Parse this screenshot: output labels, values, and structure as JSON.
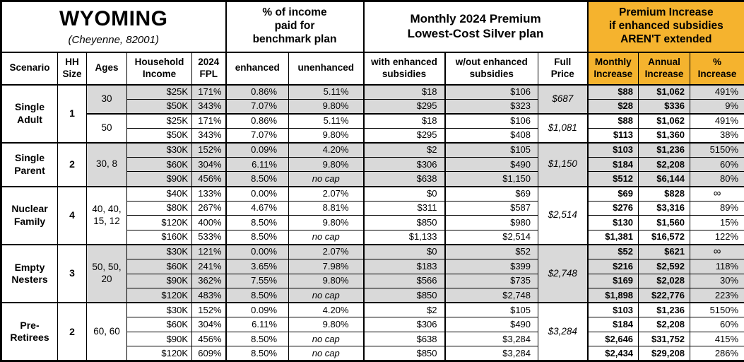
{
  "title": {
    "state": "WYOMING",
    "location": "(Cheyenne, 82001)"
  },
  "colors": {
    "accent_orange": "#F5B32E",
    "row_shade_gray": "#D9D9D9",
    "border_black": "#000000"
  },
  "header": {
    "groups": {
      "income_pct": "% of income\npaid for\nbenchmark plan",
      "premium": "Monthly 2024 Premium\nLowest-Cost Silver plan",
      "increase": "Premium Increase\nif enhanced subsidies\nAREN'T extended"
    },
    "cols": {
      "scenario": "Scenario",
      "hh": "HH\nSize",
      "ages": "Ages",
      "income": "Household\nIncome",
      "fpl": "2024\nFPL",
      "enh": "enhanced",
      "unenh": "unenhanced",
      "with_sub": "with enhanced\nsubsidies",
      "wout_sub": "w/out enhanced\nsubsidies",
      "full": "Full\nPrice",
      "mon": "Monthly\nIncrease",
      "ann": "Annual\nIncrease",
      "pct": "%\nIncrease"
    }
  },
  "groups": [
    {
      "scenario": "Single Adult",
      "hh": "1",
      "blocks": [
        {
          "ages": "30",
          "shaded": true,
          "full": "$687",
          "rows": [
            {
              "income": "$25K",
              "fpl": "171%",
              "enh": "0.86%",
              "unenh": "5.11%",
              "with_sub": "$18",
              "wout_sub": "$106",
              "mon": "$88",
              "ann": "$1,062",
              "pct": "491%"
            },
            {
              "income": "$50K",
              "fpl": "343%",
              "enh": "7.07%",
              "unenh": "9.80%",
              "with_sub": "$295",
              "wout_sub": "$323",
              "mon": "$28",
              "ann": "$336",
              "pct": "9%"
            }
          ]
        },
        {
          "ages": "50",
          "shaded": false,
          "full": "$1,081",
          "rows": [
            {
              "income": "$25K",
              "fpl": "171%",
              "enh": "0.86%",
              "unenh": "5.11%",
              "with_sub": "$18",
              "wout_sub": "$106",
              "mon": "$88",
              "ann": "$1,062",
              "pct": "491%"
            },
            {
              "income": "$50K",
              "fpl": "343%",
              "enh": "7.07%",
              "unenh": "9.80%",
              "with_sub": "$295",
              "wout_sub": "$408",
              "mon": "$113",
              "ann": "$1,360",
              "pct": "38%"
            }
          ]
        }
      ]
    },
    {
      "scenario": "Single Parent",
      "hh": "2",
      "blocks": [
        {
          "ages": "30, 8",
          "shaded": true,
          "full": "$1,150",
          "rows": [
            {
              "income": "$30K",
              "fpl": "152%",
              "enh": "0.09%",
              "unenh": "4.20%",
              "with_sub": "$2",
              "wout_sub": "$105",
              "mon": "$103",
              "ann": "$1,236",
              "pct": "5150%"
            },
            {
              "income": "$60K",
              "fpl": "304%",
              "enh": "6.11%",
              "unenh": "9.80%",
              "with_sub": "$306",
              "wout_sub": "$490",
              "mon": "$184",
              "ann": "$2,208",
              "pct": "60%"
            },
            {
              "income": "$90K",
              "fpl": "456%",
              "enh": "8.50%",
              "unenh": "no cap",
              "with_sub": "$638",
              "wout_sub": "$1,150",
              "mon": "$512",
              "ann": "$6,144",
              "pct": "80%"
            }
          ]
        }
      ]
    },
    {
      "scenario": "Nuclear Family",
      "hh": "4",
      "blocks": [
        {
          "ages": "40, 40, 15, 12",
          "shaded": false,
          "full": "$2,514",
          "rows": [
            {
              "income": "$40K",
              "fpl": "133%",
              "enh": "0.00%",
              "unenh": "2.07%",
              "with_sub": "$0",
              "wout_sub": "$69",
              "mon": "$69",
              "ann": "$828",
              "pct": "∞"
            },
            {
              "income": "$80K",
              "fpl": "267%",
              "enh": "4.67%",
              "unenh": "8.81%",
              "with_sub": "$311",
              "wout_sub": "$587",
              "mon": "$276",
              "ann": "$3,316",
              "pct": "89%"
            },
            {
              "income": "$120K",
              "fpl": "400%",
              "enh": "8.50%",
              "unenh": "9.80%",
              "with_sub": "$850",
              "wout_sub": "$980",
              "mon": "$130",
              "ann": "$1,560",
              "pct": "15%"
            },
            {
              "income": "$160K",
              "fpl": "533%",
              "enh": "8.50%",
              "unenh": "no cap",
              "with_sub": "$1,133",
              "wout_sub": "$2,514",
              "mon": "$1,381",
              "ann": "$16,572",
              "pct": "122%"
            }
          ]
        }
      ]
    },
    {
      "scenario": "Empty Nesters",
      "hh": "3",
      "blocks": [
        {
          "ages": "50, 50, 20",
          "shaded": true,
          "full": "$2,748",
          "rows": [
            {
              "income": "$30K",
              "fpl": "121%",
              "enh": "0.00%",
              "unenh": "2.07%",
              "with_sub": "$0",
              "wout_sub": "$52",
              "mon": "$52",
              "ann": "$621",
              "pct": "∞"
            },
            {
              "income": "$60K",
              "fpl": "241%",
              "enh": "3.65%",
              "unenh": "7.98%",
              "with_sub": "$183",
              "wout_sub": "$399",
              "mon": "$216",
              "ann": "$2,592",
              "pct": "118%"
            },
            {
              "income": "$90K",
              "fpl": "362%",
              "enh": "7.55%",
              "unenh": "9.80%",
              "with_sub": "$566",
              "wout_sub": "$735",
              "mon": "$169",
              "ann": "$2,028",
              "pct": "30%"
            },
            {
              "income": "$120K",
              "fpl": "483%",
              "enh": "8.50%",
              "unenh": "no cap",
              "with_sub": "$850",
              "wout_sub": "$2,748",
              "mon": "$1,898",
              "ann": "$22,776",
              "pct": "223%"
            }
          ]
        }
      ]
    },
    {
      "scenario": "Pre-Retirees",
      "hh": "2",
      "blocks": [
        {
          "ages": "60, 60",
          "shaded": false,
          "full": "$3,284",
          "rows": [
            {
              "income": "$30K",
              "fpl": "152%",
              "enh": "0.09%",
              "unenh": "4.20%",
              "with_sub": "$2",
              "wout_sub": "$105",
              "mon": "$103",
              "ann": "$1,236",
              "pct": "5150%"
            },
            {
              "income": "$60K",
              "fpl": "304%",
              "enh": "6.11%",
              "unenh": "9.80%",
              "with_sub": "$306",
              "wout_sub": "$490",
              "mon": "$184",
              "ann": "$2,208",
              "pct": "60%"
            },
            {
              "income": "$90K",
              "fpl": "456%",
              "enh": "8.50%",
              "unenh": "no cap",
              "with_sub": "$638",
              "wout_sub": "$3,284",
              "mon": "$2,646",
              "ann": "$31,752",
              "pct": "415%"
            },
            {
              "income": "$120K",
              "fpl": "609%",
              "enh": "8.50%",
              "unenh": "no cap",
              "with_sub": "$850",
              "wout_sub": "$3,284",
              "mon": "$2,434",
              "ann": "$29,208",
              "pct": "286%"
            }
          ]
        }
      ]
    }
  ]
}
